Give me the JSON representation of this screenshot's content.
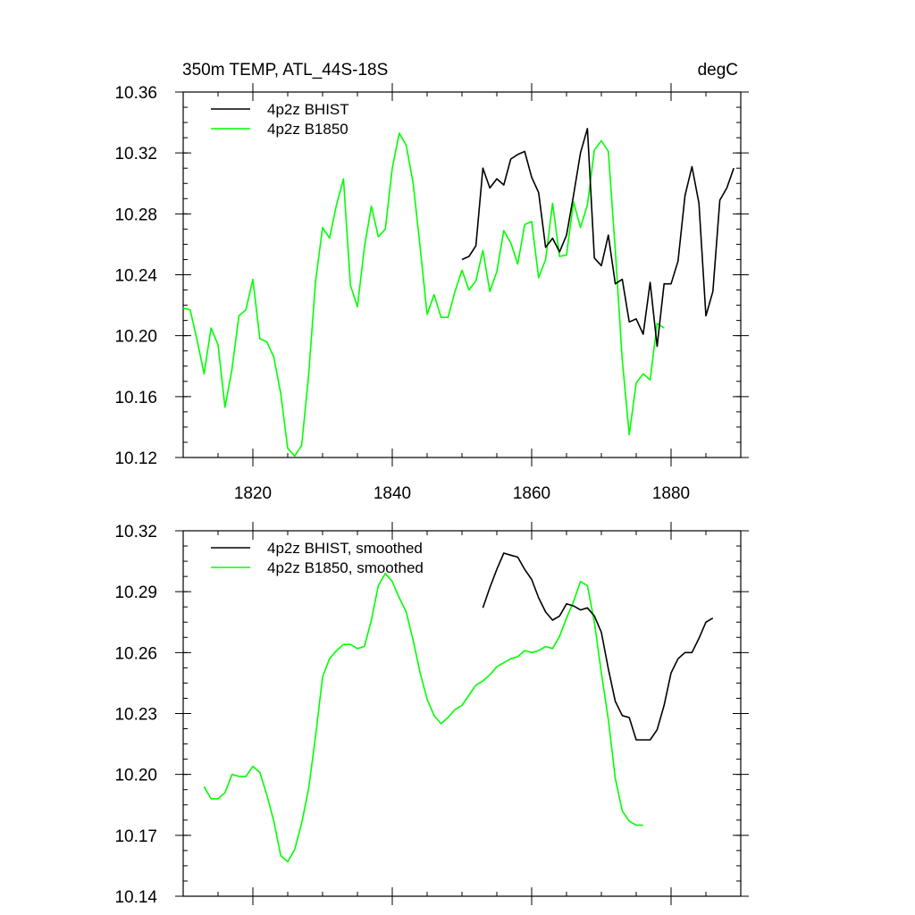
{
  "chart_data": [
    {
      "type": "line",
      "title_left": "350m TEMP, ATL_44S-18S",
      "title_right": "degC",
      "xlim": [
        1810,
        1890
      ],
      "ylim": [
        10.12,
        10.36
      ],
      "x_ticks": [
        1820,
        1840,
        1860,
        1880
      ],
      "x_minor_step": 5,
      "y_ticks": [
        "10.12",
        "10.16",
        "10.20",
        "10.24",
        "10.28",
        "10.32",
        "10.36"
      ],
      "y_minor_step": 0.01,
      "show_x_labels": true,
      "legend_position": "top-left",
      "series": [
        {
          "name": "4p2z BHIST",
          "color": "#000000",
          "x": [
            1850,
            1851,
            1852,
            1853,
            1854,
            1855,
            1856,
            1857,
            1858,
            1859,
            1860,
            1861,
            1862,
            1863,
            1864,
            1865,
            1866,
            1867,
            1868,
            1869,
            1870,
            1871,
            1872,
            1873,
            1874,
            1875,
            1876,
            1877,
            1878,
            1879,
            1880,
            1881,
            1882,
            1883,
            1884,
            1885,
            1886,
            1887,
            1888,
            1889
          ],
          "values": [
            10.25,
            10.252,
            10.259,
            10.31,
            10.297,
            10.303,
            10.299,
            10.316,
            10.319,
            10.321,
            10.304,
            10.294,
            10.258,
            10.264,
            10.255,
            10.266,
            10.292,
            10.32,
            10.336,
            10.251,
            10.246,
            10.266,
            10.234,
            10.237,
            10.209,
            10.211,
            10.201,
            10.235,
            10.193,
            10.234,
            10.234,
            10.249,
            10.292,
            10.311,
            10.287,
            10.213,
            10.229,
            10.289,
            10.297,
            10.31
          ]
        },
        {
          "name": "4p2z B1850",
          "color": "#00ff00",
          "x": [
            1810,
            1811,
            1812,
            1813,
            1814,
            1815,
            1816,
            1817,
            1818,
            1819,
            1820,
            1821,
            1822,
            1823,
            1824,
            1825,
            1826,
            1827,
            1828,
            1829,
            1830,
            1831,
            1832,
            1833,
            1834,
            1835,
            1836,
            1837,
            1838,
            1839,
            1840,
            1841,
            1842,
            1843,
            1844,
            1845,
            1846,
            1847,
            1848,
            1849,
            1850,
            1851,
            1852,
            1853,
            1854,
            1855,
            1856,
            1857,
            1858,
            1859,
            1860,
            1861,
            1862,
            1863,
            1864,
            1865,
            1866,
            1867,
            1868,
            1869,
            1870,
            1871,
            1872,
            1873,
            1874,
            1875,
            1876,
            1877,
            1878,
            1879
          ],
          "values": [
            10.218,
            10.217,
            10.197,
            10.175,
            10.205,
            10.194,
            10.153,
            10.178,
            10.213,
            10.217,
            10.237,
            10.198,
            10.196,
            10.186,
            10.162,
            10.126,
            10.121,
            10.128,
            10.174,
            10.236,
            10.271,
            10.264,
            10.286,
            10.303,
            10.233,
            10.219,
            10.258,
            10.285,
            10.265,
            10.27,
            10.31,
            10.333,
            10.325,
            10.3,
            10.258,
            10.214,
            10.227,
            10.212,
            10.212,
            10.229,
            10.243,
            10.23,
            10.236,
            10.256,
            10.229,
            10.242,
            10.269,
            10.261,
            10.247,
            10.273,
            10.275,
            10.238,
            10.25,
            10.287,
            10.252,
            10.253,
            10.288,
            10.271,
            10.286,
            10.322,
            10.328,
            10.321,
            10.256,
            10.184,
            10.135,
            10.169,
            10.175,
            10.171,
            10.208,
            10.205
          ]
        }
      ]
    },
    {
      "type": "line",
      "xlim": [
        1810,
        1890
      ],
      "ylim": [
        10.14,
        10.32
      ],
      "x_ticks": [
        1820,
        1840,
        1860,
        1880
      ],
      "x_minor_step": 5,
      "y_ticks": [
        "10.14",
        "10.17",
        "10.20",
        "10.23",
        "10.26",
        "10.29",
        "10.32"
      ],
      "y_minor_step": 0.0075,
      "show_x_labels": false,
      "legend_position": "top-left",
      "series": [
        {
          "name": "4p2z BHIST, smoothed",
          "color": "#000000",
          "x": [
            1853,
            1854,
            1855,
            1856,
            1857,
            1858,
            1859,
            1860,
            1861,
            1862,
            1863,
            1864,
            1865,
            1866,
            1867,
            1868,
            1869,
            1870,
            1871,
            1872,
            1873,
            1874,
            1875,
            1876,
            1877,
            1878,
            1879,
            1880,
            1881,
            1882,
            1883,
            1884,
            1885,
            1886
          ],
          "values": [
            10.282,
            10.292,
            10.301,
            10.309,
            10.308,
            10.307,
            10.301,
            10.296,
            10.287,
            10.28,
            10.276,
            10.278,
            10.284,
            10.283,
            10.281,
            10.282,
            10.278,
            10.27,
            10.252,
            10.236,
            10.229,
            10.228,
            10.217,
            10.217,
            10.217,
            10.222,
            10.234,
            10.25,
            10.257,
            10.26,
            10.26,
            10.267,
            10.275,
            10.277
          ]
        },
        {
          "name": "4p2z B1850, smoothed",
          "color": "#00ff00",
          "x": [
            1813,
            1814,
            1815,
            1816,
            1817,
            1818,
            1819,
            1820,
            1821,
            1822,
            1823,
            1824,
            1825,
            1826,
            1827,
            1828,
            1829,
            1830,
            1831,
            1832,
            1833,
            1834,
            1835,
            1836,
            1837,
            1838,
            1839,
            1840,
            1841,
            1842,
            1843,
            1844,
            1845,
            1846,
            1847,
            1848,
            1849,
            1850,
            1851,
            1852,
            1853,
            1854,
            1855,
            1856,
            1857,
            1858,
            1859,
            1860,
            1861,
            1862,
            1863,
            1864,
            1865,
            1866,
            1867,
            1868,
            1869,
            1870,
            1871,
            1872,
            1873,
            1874,
            1875,
            1876
          ],
          "values": [
            10.194,
            10.188,
            10.188,
            10.191,
            10.2,
            10.199,
            10.199,
            10.204,
            10.201,
            10.19,
            10.177,
            10.16,
            10.157,
            10.163,
            10.176,
            10.193,
            10.219,
            10.248,
            10.257,
            10.261,
            10.264,
            10.264,
            10.262,
            10.263,
            10.276,
            10.293,
            10.299,
            10.295,
            10.287,
            10.28,
            10.266,
            10.25,
            10.237,
            10.229,
            10.225,
            10.228,
            10.232,
            10.234,
            10.239,
            10.244,
            10.246,
            10.249,
            10.253,
            10.255,
            10.257,
            10.258,
            10.261,
            10.26,
            10.261,
            10.263,
            10.262,
            10.268,
            10.277,
            10.285,
            10.295,
            10.293,
            10.275,
            10.25,
            10.227,
            10.198,
            10.182,
            10.177,
            10.175,
            10.175
          ]
        }
      ]
    }
  ]
}
